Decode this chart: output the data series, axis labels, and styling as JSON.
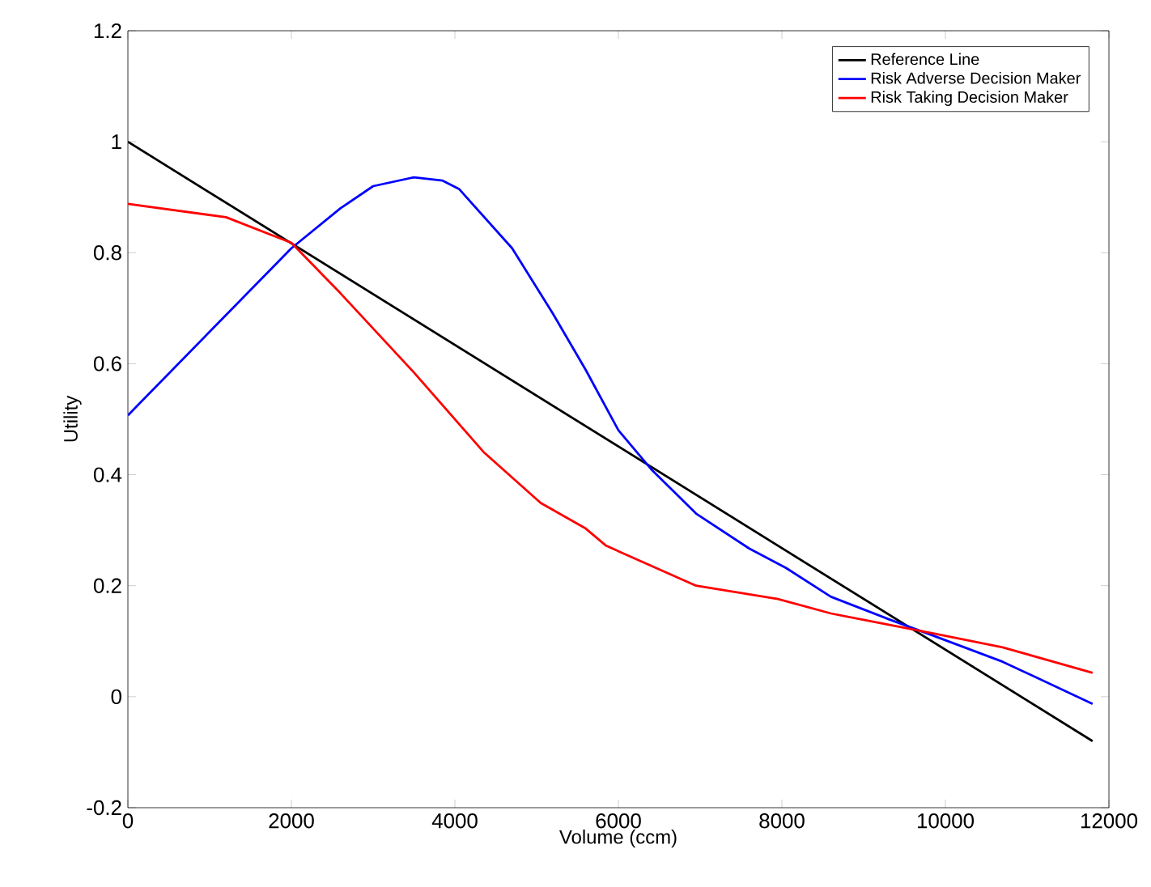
{
  "chart_data": {
    "type": "line",
    "xlabel": "Volume (ccm)",
    "ylabel": "Utility",
    "xlim": [
      0,
      12000
    ],
    "ylim": [
      -0.2,
      1.2
    ],
    "xticks": [
      0,
      2000,
      4000,
      6000,
      8000,
      10000,
      12000
    ],
    "yticks": [
      -0.2,
      0,
      0.2,
      0.4,
      0.6,
      0.8,
      1,
      1.2
    ],
    "grid": false,
    "legend": "top right",
    "marker": "none",
    "line_style": "solid",
    "series": [
      {
        "name": "Reference Line",
        "color": "#000000",
        "x": [
          0,
          11800
        ],
        "values": [
          1.0,
          -0.08
        ]
      },
      {
        "name": "Risk Adverse Decision Maker",
        "color": "#0000ff",
        "x": [
          0,
          2000,
          2600,
          3000,
          3500,
          3850,
          4050,
          4700,
          5200,
          5600,
          6000,
          6400,
          6950,
          7600,
          8050,
          8600,
          9300,
          9850,
          10700,
          11800
        ],
        "values": [
          0.507,
          0.808,
          0.88,
          0.92,
          0.936,
          0.93,
          0.915,
          0.808,
          0.69,
          0.589,
          0.48,
          0.41,
          0.33,
          0.267,
          0.232,
          0.18,
          0.14,
          0.11,
          0.063,
          -0.013
        ]
      },
      {
        "name": "Risk Taking Decision Maker",
        "color": "#ff0000",
        "x": [
          0,
          1200,
          2000,
          2600,
          3500,
          4350,
          5050,
          5600,
          5850,
          6950,
          7950,
          8600,
          9850,
          10700,
          11800
        ],
        "values": [
          0.888,
          0.864,
          0.818,
          0.727,
          0.584,
          0.441,
          0.349,
          0.303,
          0.272,
          0.2,
          0.176,
          0.15,
          0.114,
          0.089,
          0.043
        ]
      }
    ]
  }
}
